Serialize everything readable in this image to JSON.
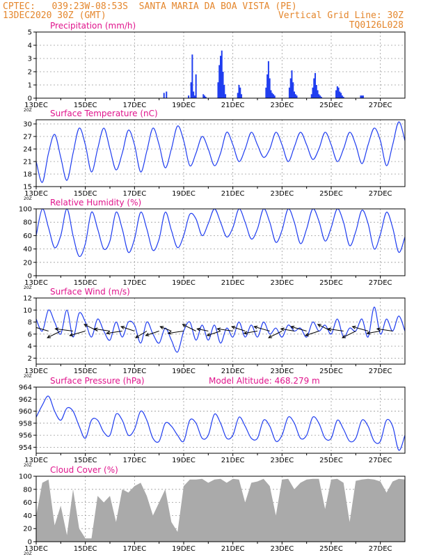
{
  "header": {
    "line1": "CPTEC:   039:23W-08:53S  SANTA MARIA DA BOA VISTA (PE)",
    "line2_left": "13DEC2020 30Z (GMT)",
    "line2_right": "Vertical Grid Line: 30Z",
    "line3_right": "TQ0126L028"
  },
  "colors": {
    "header": "#e4862c",
    "title": "#e0148c",
    "series": "#1f3df0",
    "bars": "#1f3df0",
    "cloud": "#aaaaaa",
    "arrows": "#000000",
    "grid": "#9a9a9a"
  },
  "x_ticks": [
    "13DEC",
    "15DEC",
    "17DEC",
    "19DEC",
    "21DEC",
    "23DEC",
    "25DEC",
    "27DEC"
  ],
  "x_range_days": [
    0,
    15
  ],
  "tick_stub": "20Z",
  "chart_data": [
    {
      "type": "bar",
      "title": "Precipitation (mm/h)",
      "ylim": [
        0,
        5
      ],
      "yticks": [
        "0",
        "1",
        "2",
        "3",
        "4",
        "5"
      ],
      "x_day": [
        5.2,
        5.3,
        6.2,
        6.3,
        6.35,
        6.4,
        6.45,
        6.5,
        6.8,
        6.85,
        6.9,
        7.4,
        7.45,
        7.5,
        7.55,
        7.6,
        7.65,
        7.7,
        8.2,
        8.25,
        8.3,
        8.35,
        9.35,
        9.4,
        9.45,
        9.5,
        9.55,
        9.6,
        9.65,
        9.7,
        10.3,
        10.35,
        10.4,
        10.45,
        10.5,
        10.55,
        10.6,
        11.2,
        11.25,
        11.3,
        11.35,
        11.4,
        11.45,
        11.5,
        11.55,
        11.6,
        12.2,
        12.25,
        12.3,
        12.35,
        12.4,
        12.45,
        12.5,
        13.2,
        13.25,
        13.3
      ],
      "values": [
        0.4,
        0.5,
        0.2,
        1.2,
        3.3,
        0.5,
        0.2,
        1.8,
        0.3,
        0.2,
        0.1,
        1.2,
        2.5,
        3.2,
        3.6,
        2.0,
        1.0,
        0.3,
        0.4,
        1.0,
        0.8,
        0.3,
        0.8,
        1.8,
        2.8,
        1.5,
        0.6,
        0.4,
        0.3,
        0.2,
        0.8,
        1.5,
        2.1,
        1.2,
        0.5,
        0.3,
        0.2,
        0.3,
        0.8,
        1.5,
        1.9,
        1.0,
        0.6,
        0.3,
        0.2,
        0.1,
        0.6,
        0.9,
        0.8,
        0.5,
        0.4,
        0.2,
        0.1,
        0.2,
        0.2,
        0.2
      ]
    },
    {
      "type": "line",
      "title": "Surface Temperature (nC)",
      "ylim": [
        15,
        31
      ],
      "yticks": [
        "15",
        "18",
        "21",
        "24",
        "27",
        "30"
      ],
      "x_day": [
        0,
        0.25,
        0.5,
        0.75,
        1,
        1.25,
        1.5,
        1.75,
        2,
        2.25,
        2.5,
        2.75,
        3,
        3.25,
        3.5,
        3.75,
        4,
        4.25,
        4.5,
        4.75,
        5,
        5.25,
        5.5,
        5.75,
        6,
        6.25,
        6.5,
        6.75,
        7,
        7.25,
        7.5,
        7.75,
        8,
        8.25,
        8.5,
        8.75,
        9,
        9.25,
        9.5,
        9.75,
        10,
        10.25,
        10.5,
        10.75,
        11,
        11.25,
        11.5,
        11.75,
        12,
        12.25,
        12.5,
        12.75,
        13,
        13.25,
        13.5,
        13.75,
        14,
        14.25,
        14.5,
        14.75,
        15
      ],
      "values": [
        21,
        16,
        23,
        27.5,
        22,
        16.5,
        23,
        29,
        25,
        18.5,
        24,
        29,
        24,
        19,
        23,
        28.5,
        25,
        18.5,
        23.5,
        29,
        25,
        19.5,
        24,
        29.5,
        26,
        20,
        23,
        27,
        24,
        20,
        23,
        28,
        25,
        21,
        24,
        28,
        25,
        22,
        24,
        28,
        25,
        21,
        24.5,
        28,
        25,
        21.5,
        24,
        28,
        25,
        21,
        24,
        28,
        25,
        20.5,
        25,
        29,
        26,
        20,
        25,
        30.5,
        26
      ]
    },
    {
      "type": "line",
      "title": "Relative Humidity (%)",
      "ylim": [
        0,
        100
      ],
      "yticks": [
        "0",
        "20",
        "40",
        "60",
        "80",
        "100"
      ],
      "x_day": [
        0,
        0.25,
        0.5,
        0.75,
        1,
        1.25,
        1.5,
        1.75,
        2,
        2.25,
        2.5,
        2.75,
        3,
        3.25,
        3.5,
        3.75,
        4,
        4.25,
        4.5,
        4.75,
        5,
        5.25,
        5.5,
        5.75,
        6,
        6.25,
        6.5,
        6.75,
        7,
        7.25,
        7.5,
        7.75,
        8,
        8.25,
        8.5,
        8.75,
        9,
        9.25,
        9.5,
        9.75,
        10,
        10.25,
        10.5,
        10.75,
        11,
        11.25,
        11.5,
        11.75,
        12,
        12.25,
        12.5,
        12.75,
        13,
        13.25,
        13.5,
        13.75,
        14,
        14.25,
        14.5,
        14.75,
        15
      ],
      "values": [
        60,
        100,
        72,
        42,
        60,
        100,
        60,
        29,
        48,
        95,
        70,
        40,
        52,
        95,
        70,
        35,
        55,
        95,
        70,
        38,
        55,
        95,
        68,
        42,
        60,
        92,
        85,
        60,
        78,
        100,
        80,
        58,
        72,
        100,
        80,
        55,
        70,
        100,
        80,
        50,
        68,
        100,
        80,
        48,
        70,
        100,
        82,
        52,
        72,
        100,
        80,
        45,
        66,
        98,
        78,
        40,
        62,
        95,
        72,
        35,
        58
      ]
    },
    {
      "type": "line",
      "title": "Surface Wind (m/s)",
      "ylim": [
        1,
        12
      ],
      "yticks": [
        "2",
        "4",
        "6",
        "8",
        "10",
        "12"
      ],
      "x_day": [
        0,
        0.25,
        0.5,
        0.75,
        1,
        1.25,
        1.5,
        1.75,
        2,
        2.25,
        2.5,
        2.75,
        3,
        3.25,
        3.5,
        3.75,
        4,
        4.25,
        4.5,
        4.75,
        5,
        5.25,
        5.5,
        5.75,
        6,
        6.25,
        6.5,
        6.75,
        7,
        7.25,
        7.5,
        7.75,
        8,
        8.25,
        8.5,
        8.75,
        9,
        9.25,
        9.5,
        9.75,
        10,
        10.25,
        10.5,
        10.75,
        11,
        11.25,
        11.5,
        11.75,
        12,
        12.25,
        12.5,
        12.75,
        13,
        13.25,
        13.5,
        13.75,
        14,
        14.25,
        14.5,
        14.75,
        15
      ],
      "values": [
        8.5,
        6.5,
        10.0,
        8.0,
        6.0,
        10.0,
        5.5,
        9.5,
        8.0,
        5.5,
        8.5,
        6.5,
        5.0,
        8.0,
        5.5,
        8.0,
        7.5,
        4.5,
        8.0,
        6.0,
        4.5,
        7.0,
        5.0,
        3.0,
        6.5,
        8.0,
        5.0,
        7.5,
        5.0,
        7.5,
        4.5,
        7.0,
        5.5,
        8.0,
        5.5,
        7.5,
        5.5,
        8.0,
        6.0,
        7.0,
        5.5,
        7.5,
        6.5,
        7.0,
        5.5,
        8.0,
        6.5,
        7.5,
        6.0,
        8.5,
        5.5,
        7.0,
        6.5,
        8.5,
        5.5,
        10.5,
        6.0,
        8.5,
        6.5,
        9.0,
        6.5
      ]
    },
    {
      "type": "line",
      "title": "Surface Pressure (hPa)",
      "annotation": "Model Altitude: 468.279  m",
      "ylim": [
        953,
        964
      ],
      "yticks": [
        "954",
        "956",
        "958",
        "960",
        "962",
        "964"
      ],
      "x_day": [
        0,
        0.25,
        0.5,
        0.75,
        1,
        1.25,
        1.5,
        1.75,
        2,
        2.25,
        2.5,
        2.75,
        3,
        3.25,
        3.5,
        3.75,
        4,
        4.25,
        4.5,
        4.75,
        5,
        5.25,
        5.5,
        5.75,
        6,
        6.25,
        6.5,
        6.75,
        7,
        7.25,
        7.5,
        7.75,
        8,
        8.25,
        8.5,
        8.75,
        9,
        9.25,
        9.5,
        9.75,
        10,
        10.25,
        10.5,
        10.75,
        11,
        11.25,
        11.5,
        11.75,
        12,
        12.25,
        12.5,
        12.75,
        13,
        13.25,
        13.5,
        13.75,
        14,
        14.25,
        14.5,
        14.75,
        15
      ],
      "values": [
        959,
        961,
        962.5,
        960,
        958.5,
        960.5,
        960,
        957.5,
        955.5,
        958.5,
        958.5,
        956.5,
        956,
        959.5,
        958.5,
        956,
        957,
        960,
        958.5,
        955.5,
        955,
        958,
        957.5,
        956,
        955,
        958.5,
        958,
        955.5,
        956,
        959.5,
        958,
        955.5,
        956,
        959,
        957.5,
        955.5,
        955.5,
        958.5,
        957.5,
        955,
        956,
        959,
        958,
        955.5,
        956,
        959,
        958,
        955.5,
        955.5,
        958.5,
        957,
        955,
        955.5,
        958.5,
        957.5,
        955,
        955,
        958.5,
        957.5,
        953.5,
        956
      ]
    },
    {
      "type": "area",
      "title": "Cloud Cover (%)",
      "ylim": [
        0,
        100
      ],
      "yticks": [
        "0",
        "20",
        "40",
        "60",
        "80",
        "100"
      ],
      "x_day": [
        0,
        0.25,
        0.5,
        0.75,
        1,
        1.25,
        1.5,
        1.75,
        2,
        2.25,
        2.5,
        2.75,
        3,
        3.25,
        3.5,
        3.75,
        4,
        4.25,
        4.5,
        4.75,
        5,
        5.25,
        5.5,
        5.75,
        6,
        6.25,
        6.5,
        6.75,
        7,
        7.25,
        7.5,
        7.75,
        8,
        8.25,
        8.5,
        8.75,
        9,
        9.25,
        9.5,
        9.75,
        10,
        10.25,
        10.5,
        10.75,
        11,
        11.25,
        11.5,
        11.75,
        12,
        12.25,
        12.5,
        12.75,
        13,
        13.25,
        13.5,
        13.75,
        14,
        14.25,
        14.5,
        14.75,
        15
      ],
      "values": [
        40,
        90,
        95,
        25,
        55,
        10,
        80,
        20,
        5,
        5,
        70,
        60,
        70,
        30,
        80,
        75,
        85,
        90,
        70,
        40,
        60,
        80,
        30,
        15,
        85,
        95,
        95,
        96,
        90,
        95,
        96,
        90,
        96,
        95,
        60,
        90,
        92,
        96,
        85,
        40,
        95,
        96,
        80,
        90,
        95,
        96,
        96,
        50,
        95,
        96,
        90,
        30,
        93,
        95,
        96,
        95,
        92,
        75,
        92,
        96,
        95
      ]
    }
  ],
  "wind_vectors": {
    "x_day": [
      0.5,
      1.0,
      1.5,
      2.0,
      2.5,
      3.0,
      3.5,
      4.0,
      4.5,
      5.0,
      5.5,
      6.0,
      6.5,
      7.0,
      7.5,
      8.0,
      8.5,
      9.0,
      9.5,
      10.0,
      10.5,
      11.0,
      11.5,
      12.0,
      12.5,
      13.0,
      13.5,
      14.0,
      14.5
    ],
    "u": [
      -7,
      -6,
      -8,
      -7,
      -6,
      -7,
      -7,
      -6,
      -5,
      -6,
      -5,
      -7,
      -6,
      -5,
      -6,
      -7,
      -6,
      -6,
      -7,
      -6,
      -6,
      -7,
      -6,
      -6,
      -7,
      -6,
      -7,
      -6,
      -7
    ],
    "v": [
      2,
      -3,
      1,
      -2,
      3,
      1,
      -1,
      2,
      -3,
      -2,
      2,
      -1,
      3,
      1,
      -2,
      1,
      2,
      -1,
      2,
      -3,
      1,
      2,
      -2,
      3,
      1,
      -3,
      2,
      -1,
      1
    ]
  }
}
